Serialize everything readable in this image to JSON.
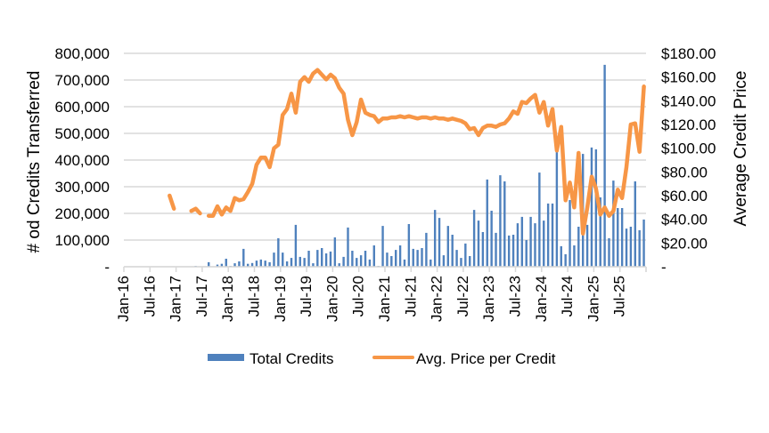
{
  "chart_data": {
    "type": "bar+line",
    "title": "",
    "xlabel": "",
    "ylabel_left": "# od Credits Transferred",
    "ylabel_right": "Average Credit Price",
    "ylim_left": [
      0,
      800000
    ],
    "ylim_right": [
      0,
      180
    ],
    "left_tick_labels": [
      "-",
      "100,000",
      "200,000",
      "300,000",
      "400,000",
      "500,000",
      "600,000",
      "700,000",
      "800,000"
    ],
    "right_tick_labels": [
      "-",
      "$20.00",
      "$40.00",
      "$60.00",
      "$80.00",
      "$100.00",
      "$120.00",
      "$140.00",
      "$160.00",
      "$180.00"
    ],
    "x_tick_labels": [
      "Jan-16",
      "Jul-16",
      "Jan-17",
      "Jul-17",
      "Jan-18",
      "Jul-18",
      "Jan-19",
      "Jul-19",
      "Jan-20",
      "Jul-20",
      "Jan-21",
      "Jul-21",
      "Jan-22",
      "Jul-22",
      "Jan-23",
      "Jul-23",
      "Jan-24",
      "Jul-24",
      "Jan-25",
      "Jul-25"
    ],
    "x_range": [
      "Jan-16",
      "Dec-25"
    ],
    "x_interval": "monthly",
    "grid": true,
    "legend_position": "bottom",
    "series": [
      {
        "name": "Total Credits",
        "type": "bar",
        "axis": "left",
        "color": "#4F81BD",
        "values": [
          0,
          0,
          0,
          0,
          0,
          0,
          0,
          0,
          0,
          0,
          0,
          0,
          0,
          0,
          0,
          0,
          3000,
          0,
          0,
          17000,
          0,
          8000,
          11000,
          30000,
          3000,
          13000,
          20000,
          67000,
          11000,
          14000,
          23000,
          27000,
          23000,
          17000,
          53000,
          107000,
          53000,
          20000,
          33000,
          157000,
          37000,
          33000,
          60000,
          13000,
          63000,
          70000,
          50000,
          57000,
          110000,
          13000,
          37000,
          147000,
          60000,
          33000,
          43000,
          60000,
          27000,
          80000,
          3000,
          153000,
          53000,
          40000,
          63000,
          80000,
          27000,
          160000,
          67000,
          63000,
          70000,
          127000,
          27000,
          213000,
          183000,
          43000,
          153000,
          120000,
          63000,
          33000,
          87000,
          40000,
          213000,
          173000,
          130000,
          327000,
          210000,
          127000,
          343000,
          320000,
          117000,
          120000,
          163000,
          187000,
          100000,
          187000,
          163000,
          353000,
          173000,
          237000,
          237000,
          430000,
          77000,
          47000,
          250000,
          80000,
          150000,
          423000,
          157000,
          447000,
          440000,
          260000,
          757000,
          107000,
          323000,
          220000,
          220000,
          143000,
          150000,
          320000,
          137000,
          177000
        ]
      },
      {
        "name": "Avg. Price per Credit",
        "type": "line",
        "axis": "right",
        "color": "#F79646",
        "values": [
          null,
          null,
          null,
          null,
          null,
          null,
          null,
          null,
          null,
          null,
          60,
          49,
          null,
          null,
          null,
          47,
          49,
          45,
          null,
          43,
          43,
          51,
          44,
          50,
          47,
          58,
          56,
          57,
          63,
          70,
          86,
          92,
          92,
          84,
          100,
          103,
          128,
          133,
          146,
          130,
          156,
          160,
          156,
          163,
          166,
          162,
          158,
          162,
          159,
          151,
          146,
          124,
          111,
          122,
          141,
          130,
          128,
          127,
          122,
          125,
          125,
          126,
          126,
          127,
          126,
          127,
          126,
          125,
          126,
          126,
          125,
          126,
          125,
          125,
          124,
          125,
          124,
          123,
          121,
          116,
          117,
          111,
          117,
          119,
          119,
          118,
          120,
          121,
          125,
          131,
          129,
          139,
          138,
          142,
          145,
          130,
          139,
          119,
          133,
          98,
          118,
          56,
          71,
          50,
          96,
          28,
          50,
          76,
          66,
          44,
          50,
          43,
          47,
          65,
          58,
          84,
          120,
          121,
          97,
          152
        ]
      }
    ]
  }
}
